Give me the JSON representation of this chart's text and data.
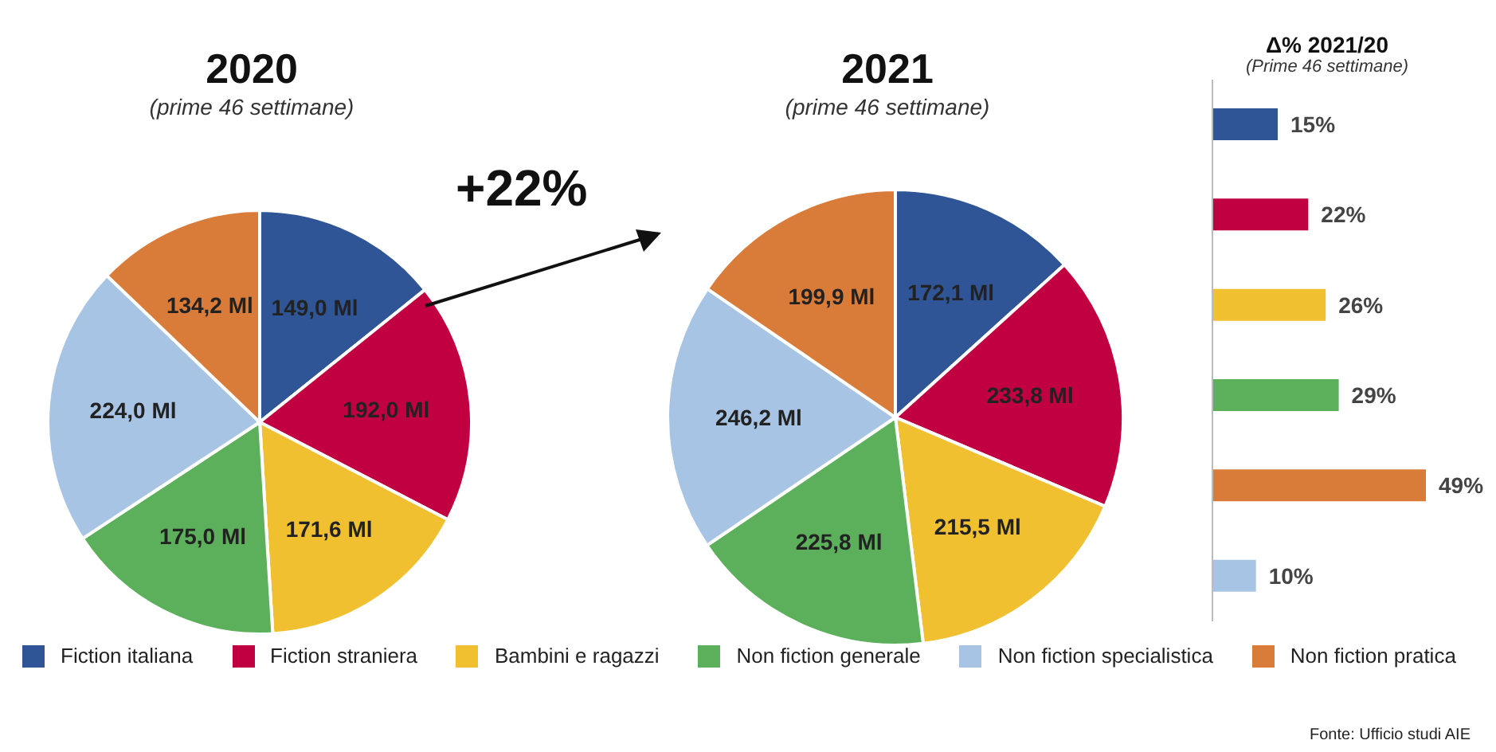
{
  "chart_data": [
    {
      "type": "pie",
      "title": "2020",
      "subtitle": "(prime 46 settimane)",
      "categories": [
        "Fiction italiana",
        "Fiction straniera",
        "Bambini e ragazzi",
        "Non fiction generale",
        "Non fiction specialistica",
        "Non fiction pratica"
      ],
      "values": [
        149.0,
        192.0,
        171.6,
        175.0,
        224.0,
        134.2
      ],
      "value_labels": [
        "149,0 Ml",
        "192,0 Ml",
        "171,6 Ml",
        "175,0 Ml",
        "224,0 Ml",
        "134,2 Ml"
      ],
      "colors": [
        "#2f5597",
        "#c00040",
        "#f0c030",
        "#5cb05c",
        "#a8c4e4",
        "#d97c3a"
      ],
      "legend": "bottom",
      "annotations": [
        "+22%"
      ]
    },
    {
      "type": "pie",
      "title": "2021",
      "subtitle": "(prime 46 settimane)",
      "categories": [
        null,
        null,
        null,
        null,
        null,
        null
      ],
      "values": [
        172.1,
        233.8,
        215.5,
        225.8,
        246.2,
        199.9
      ],
      "value_labels": [
        "172,1 Ml",
        "233,8 Ml",
        "215,5 Ml",
        "225,8 Ml",
        "246,2 Ml",
        "199,9 Ml"
      ],
      "colors": [
        "#2f5597",
        "#c00040",
        "#f0c030",
        "#5cb05c",
        "#a8c4e4",
        "#d97c3a"
      ]
    },
    {
      "type": "bar",
      "orientation": "horizontal",
      "title": "Δ% 2021/20",
      "subtitle": "(Prime 46 settimane)",
      "categories": [
        null,
        null,
        null,
        null,
        null,
        null
      ],
      "values": [
        15,
        22,
        26,
        29,
        49,
        10
      ],
      "value_labels": [
        "15%",
        "22%",
        "26%",
        "29%",
        "49%",
        "10%"
      ],
      "colors": [
        "#2f5597",
        "#c00040",
        "#f0c030",
        "#5cb05c",
        "#d97c3a",
        "#a8c4e4"
      ],
      "annotations": [
        "Fonte: Ufficio studi AIE"
      ]
    }
  ]
}
